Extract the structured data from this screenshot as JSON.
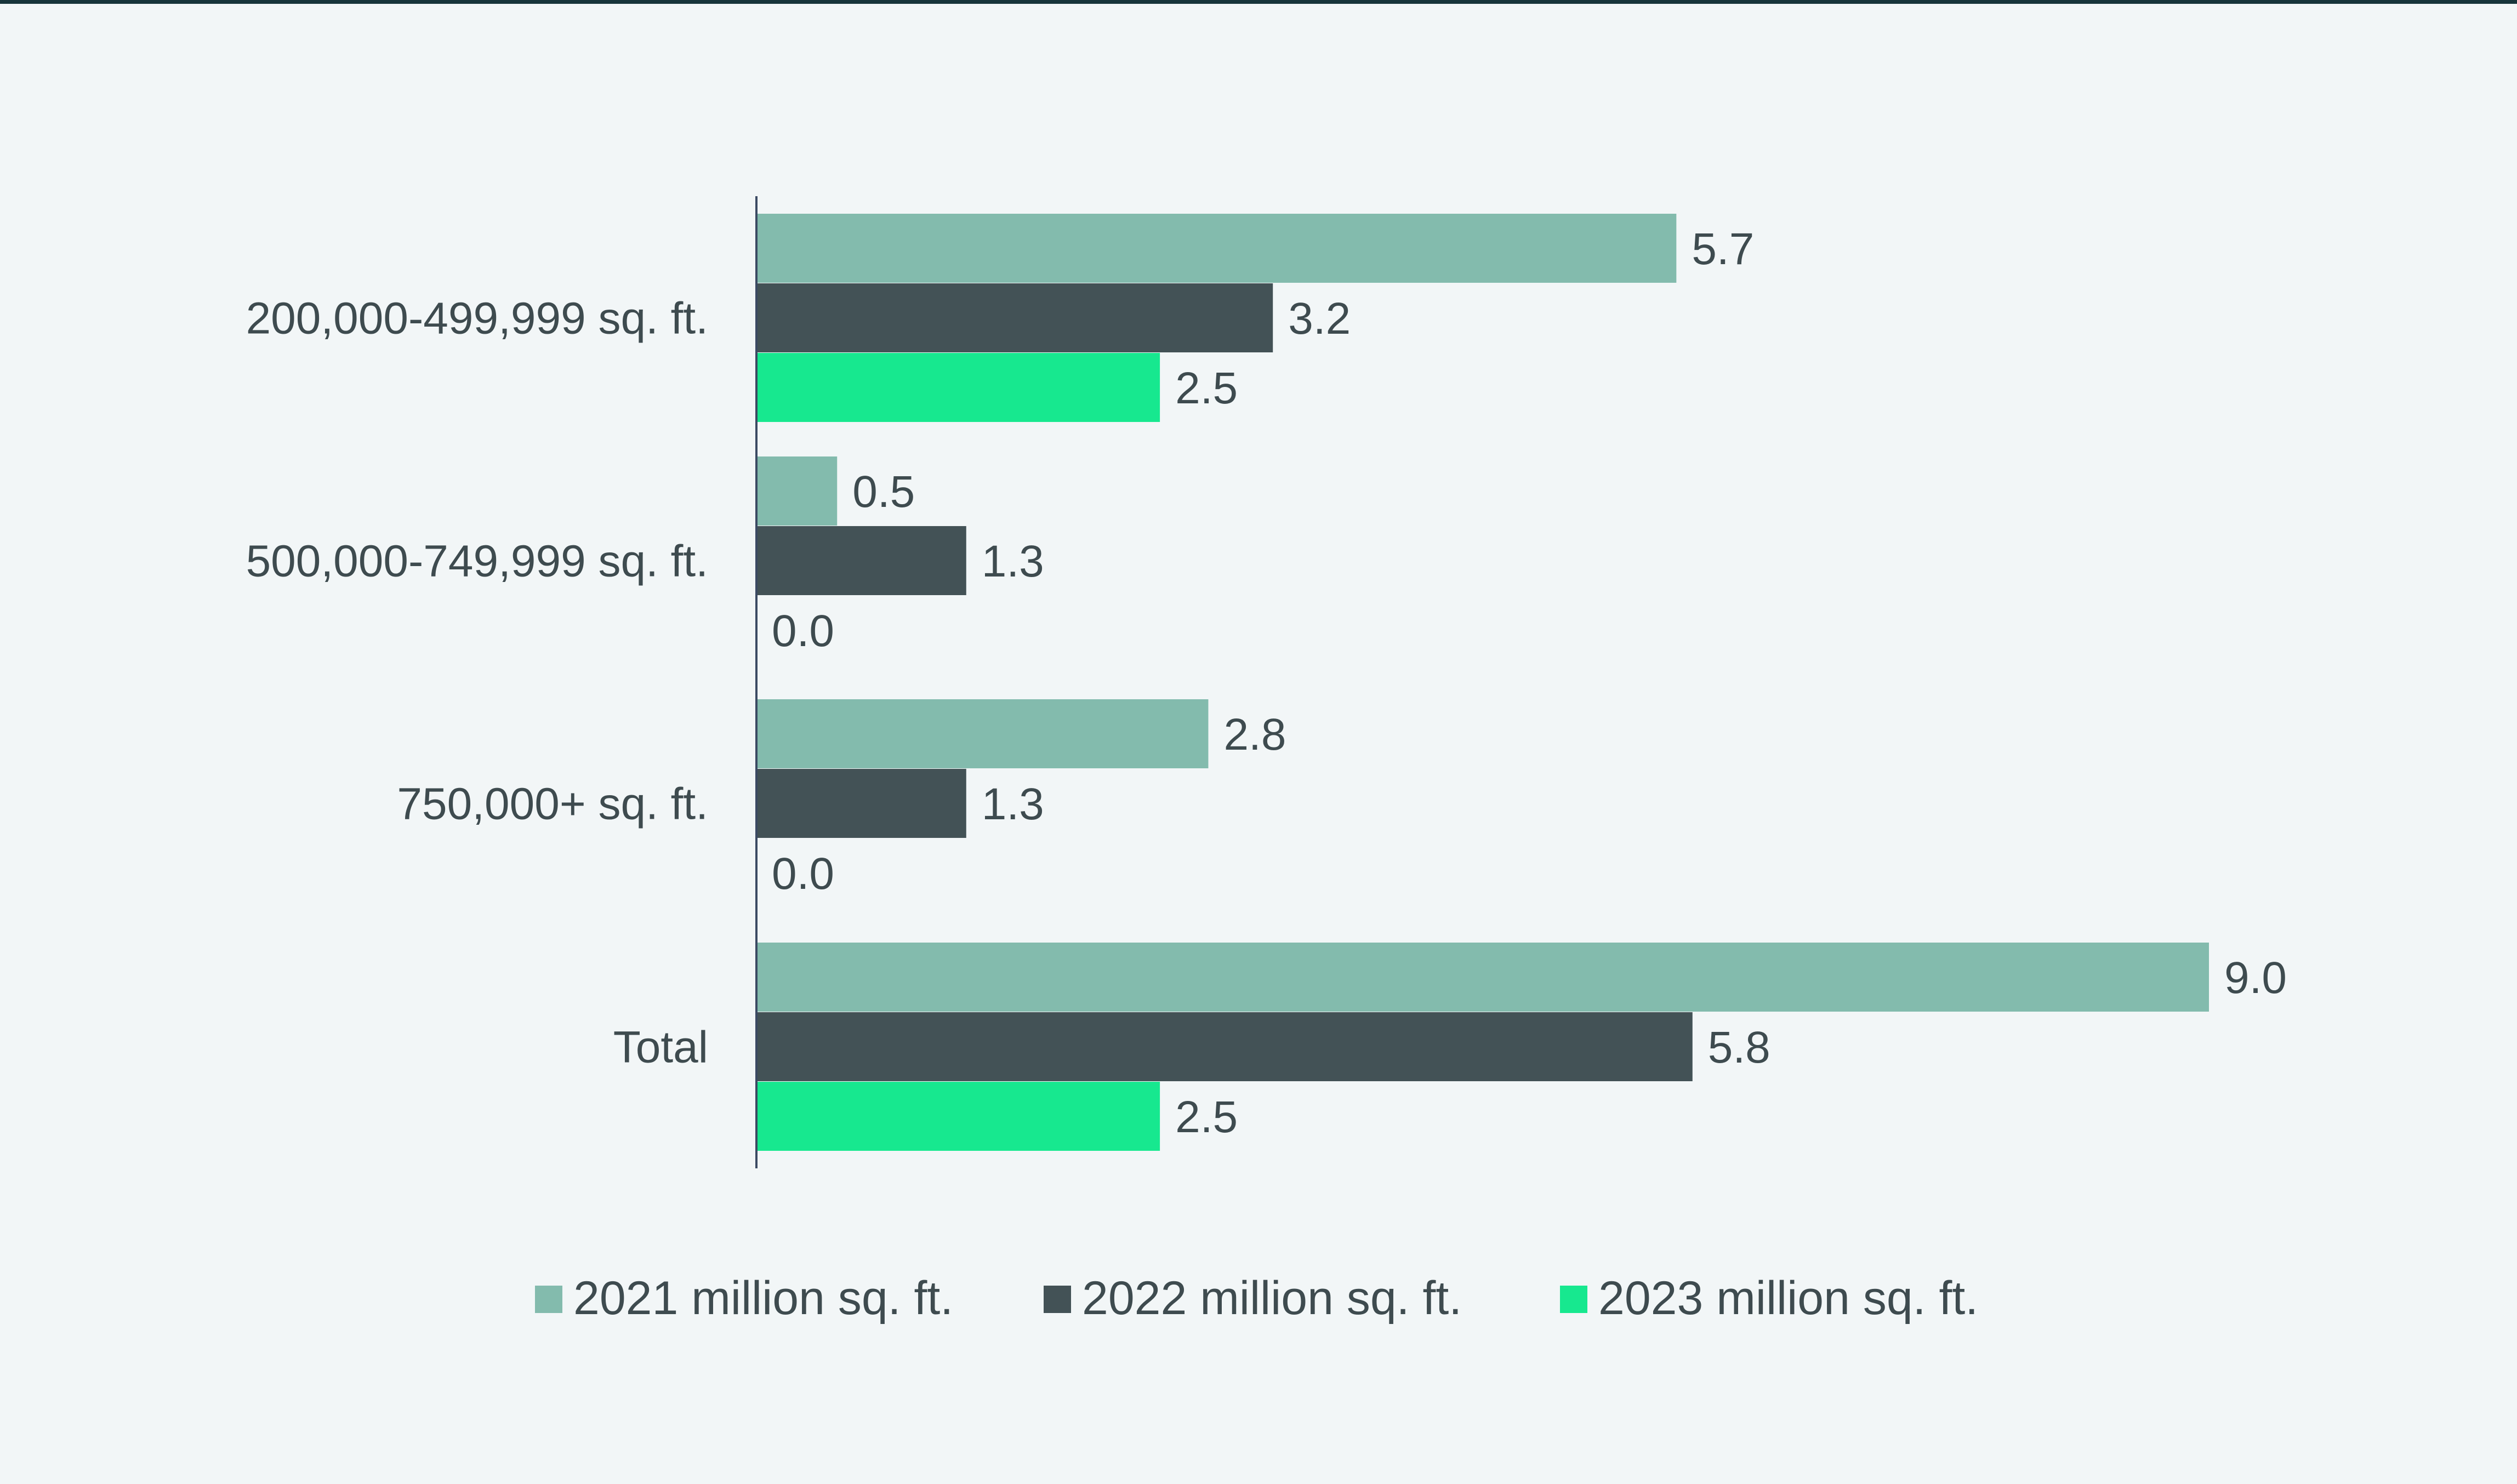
{
  "chart_data": {
    "type": "bar",
    "orientation": "horizontal",
    "title": "",
    "xlabel": "",
    "ylabel": "",
    "xlim": [
      0,
      9.0
    ],
    "grid": false,
    "legend_position": "bottom",
    "categories": [
      "200,000-499,999 sq. ft.",
      "500,000-749,999 sq. ft.",
      "750,000+ sq. ft.",
      "Total"
    ],
    "series": [
      {
        "name": "2021 million sq. ft.",
        "color": "#83bbad",
        "values": [
          5.7,
          0.5,
          2.8,
          9.0
        ],
        "labels": [
          "5.7",
          "0.5",
          "2.8",
          "9.0"
        ]
      },
      {
        "name": "2022 million sq. ft.",
        "color": "#435256",
        "values": [
          3.2,
          1.3,
          1.3,
          5.8
        ],
        "labels": [
          "3.2",
          "1.3",
          "1.3",
          "5.8"
        ]
      },
      {
        "name": "2023 million sq. ft.",
        "color": "#17e88f",
        "values": [
          2.5,
          0.0,
          0.0,
          2.5
        ],
        "labels": [
          "2.5",
          "0.0",
          "0.0",
          "2.5"
        ]
      }
    ]
  }
}
